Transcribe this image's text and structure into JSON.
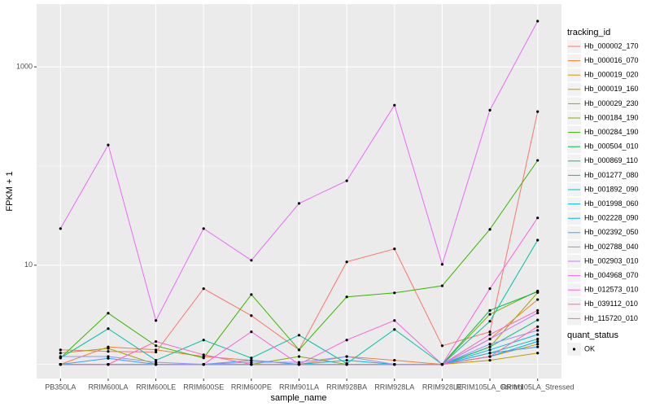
{
  "chart_data": {
    "type": "line",
    "x_label": "sample_name",
    "y_label": "FPKM + 1",
    "categories": [
      "PB350LA",
      "RRIM600LA",
      "RRIM600LE",
      "RRIM600SE",
      "RRIM600PE",
      "RRIM901LA",
      "RRIM928BA",
      "RRIM928LA",
      "RRIM928LE",
      "RRIM105LA_Control",
      "RRIM105LA_Stressed"
    ],
    "ylim": [
      0.72,
      4300
    ],
    "yticks": [
      10,
      1000
    ],
    "log_y": true,
    "grid": true,
    "legend_title": "tracking_id",
    "shape_legend": {
      "title": "quant_status",
      "items": [
        "OK"
      ]
    },
    "point_color": "#000000",
    "series": [
      {
        "name": "Hb_000002_170",
        "color": "#F8766D",
        "values": [
          1.4,
          1.35,
          1.33,
          5.8,
          3.1,
          1.4,
          10.8,
          14.6,
          1.54,
          2.13,
          354
        ]
      },
      {
        "name": "Hb_000016_070",
        "color": "#EA8331",
        "values": [
          1,
          1.5,
          1.4,
          1.2,
          1.1,
          1,
          1.2,
          1.1,
          1,
          1.8,
          4.5
        ]
      },
      {
        "name": "Hb_000019_020",
        "color": "#D89000",
        "values": [
          1,
          1,
          1,
          1,
          1,
          1,
          1,
          1,
          1,
          1.2,
          1.6
        ]
      },
      {
        "name": "Hb_000019_160",
        "color": "#C09B00",
        "values": [
          1,
          1,
          1,
          1,
          1,
          1,
          1,
          1,
          1,
          1.1,
          1.3
        ]
      },
      {
        "name": "Hb_000029_230",
        "color": "#A3A500",
        "values": [
          1.3,
          1.45,
          1,
          1,
          1,
          1,
          1,
          1,
          1,
          1.5,
          5.3
        ]
      },
      {
        "name": "Hb_000184_190",
        "color": "#7CAE00",
        "values": [
          1,
          1,
          1,
          1,
          1,
          1.2,
          1,
          1,
          1,
          3.2,
          5.5
        ]
      },
      {
        "name": "Hb_000284_190",
        "color": "#39B600",
        "values": [
          1.16,
          3.28,
          1.54,
          1.16,
          5.06,
          1.4,
          4.79,
          5.26,
          6.2,
          23,
          114
        ]
      },
      {
        "name": "Hb_000504_010",
        "color": "#00BB4E",
        "values": [
          1,
          1,
          1,
          1,
          1,
          1,
          1,
          1,
          1,
          3.5,
          5.4
        ]
      },
      {
        "name": "Hb_000869_110",
        "color": "#00BF7D",
        "values": [
          1,
          1,
          1,
          1,
          1,
          1,
          1,
          1,
          1,
          1.5,
          2.8
        ]
      },
      {
        "name": "Hb_001277_080",
        "color": "#00C1A3",
        "values": [
          1.16,
          2.29,
          1.1,
          1.76,
          1.16,
          1.97,
          1.02,
          2.25,
          1,
          2.72,
          17.9
        ]
      },
      {
        "name": "Hb_001892_090",
        "color": "#00BFC4",
        "values": [
          1,
          1,
          1,
          1,
          1,
          1,
          1,
          1,
          1,
          1.3,
          1.8
        ]
      },
      {
        "name": "Hb_001998_060",
        "color": "#00BAE0",
        "values": [
          1,
          1,
          1,
          1,
          1,
          1,
          1.1,
          1,
          1,
          1.4,
          2.0
        ]
      },
      {
        "name": "Hb_002228_090",
        "color": "#00B0F6",
        "values": [
          1,
          1,
          1,
          1,
          1,
          1,
          1,
          1,
          1,
          1.2,
          1.7
        ]
      },
      {
        "name": "Hb_002392_050",
        "color": "#35A2FF",
        "values": [
          1,
          1.15,
          1,
          1,
          1.1,
          1,
          1,
          1,
          1,
          1.3,
          1.5
        ]
      },
      {
        "name": "Hb_002788_040",
        "color": "#9590FF",
        "values": [
          1.2,
          1.2,
          1.05,
          1,
          1.05,
          1.05,
          1.2,
          1,
          1,
          1.6,
          2.2
        ]
      },
      {
        "name": "Hb_002903_010",
        "color": "#C77CFF",
        "values": [
          1,
          1,
          1,
          1,
          1,
          1,
          1,
          1,
          1,
          1.8,
          3.3
        ]
      },
      {
        "name": "Hb_004968_070",
        "color": "#E76BF3",
        "values": [
          23.4,
          163,
          2.77,
          23.4,
          11.2,
          42,
          71,
          411,
          10.2,
          366,
          2890
        ]
      },
      {
        "name": "Hb_012573_010",
        "color": "#FA62DB",
        "values": [
          1,
          1,
          1,
          1,
          2.13,
          1,
          1.76,
          2.77,
          1,
          5.8,
          30
        ]
      },
      {
        "name": "Hb_039112_010",
        "color": "#FF62BC",
        "values": [
          1,
          1,
          1.7,
          1.25,
          1,
          1,
          1,
          1,
          1,
          2,
          3.5
        ]
      },
      {
        "name": "Hb_115720_010",
        "color": "#FF6C91",
        "values": [
          1,
          1,
          1,
          1,
          1,
          1,
          1,
          1,
          1,
          1.2,
          2.4
        ]
      }
    ]
  }
}
